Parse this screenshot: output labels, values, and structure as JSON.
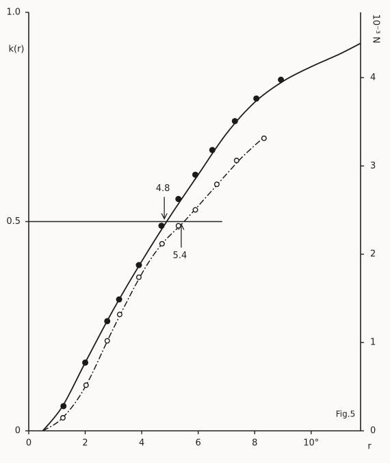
{
  "chart_data": {
    "type": "scatter",
    "ylabel": "k(r)",
    "xlabel": "r",
    "y2label": "10⁻³ N",
    "figure_label": "Fig.5",
    "xlim": [
      0,
      11.75
    ],
    "xticks": [
      0,
      2,
      4,
      6,
      8,
      {
        "value": 10,
        "label": "10°"
      }
    ],
    "ylim": [
      0,
      1.0
    ],
    "yticks": [
      0,
      0.5,
      {
        "value": 1.0,
        "label": "1.0"
      }
    ],
    "y2lim": [
      0,
      4.74
    ],
    "y2ticks": [
      0,
      1,
      2,
      3,
      4
    ],
    "hline": {
      "y": 0.5,
      "x_end": 6.85
    },
    "annotations": [
      {
        "text": "4.8",
        "x": 4.8,
        "side": "above"
      },
      {
        "text": "5.4",
        "x": 5.4,
        "side": "below"
      }
    ],
    "series": [
      {
        "style": "filled",
        "color": "#1a1a1a",
        "x": [
          1.23,
          2.0,
          2.78,
          3.2,
          3.9,
          4.7,
          5.3,
          5.9,
          6.5,
          7.3,
          8.06,
          8.93
        ],
        "values": [
          0.059,
          0.163,
          0.262,
          0.314,
          0.396,
          0.49,
          0.554,
          0.612,
          0.671,
          0.74,
          0.794,
          0.839
        ]
      },
      {
        "style": "open",
        "color": "#1a1a1a",
        "x": [
          1.21,
          2.03,
          2.78,
          3.22,
          3.9,
          4.72,
          5.3,
          5.9,
          6.66,
          7.36,
          8.33
        ],
        "values": [
          0.031,
          0.109,
          0.215,
          0.278,
          0.367,
          0.447,
          0.49,
          0.528,
          0.589,
          0.646,
          0.699
        ]
      },
      {
        "style": "solid",
        "color": "#1a1a1a",
        "x": [
          0.5,
          1.2,
          2,
          3,
          4,
          5,
          6,
          7,
          8,
          9,
          10,
          11,
          11.75
        ],
        "values": [
          0,
          0.059,
          0.163,
          0.29,
          0.405,
          0.512,
          0.612,
          0.71,
          0.785,
          0.835,
          0.87,
          0.9,
          0.926
        ]
      },
      {
        "style": "dashdot",
        "color": "#1a1a1a",
        "x": [
          0.5,
          1.2,
          2,
          3,
          4,
          4.7,
          5.5,
          6.5,
          7.5,
          8.3
        ],
        "values": [
          0,
          0.031,
          0.105,
          0.245,
          0.375,
          0.445,
          0.5,
          0.575,
          0.65,
          0.7
        ]
      }
    ]
  }
}
